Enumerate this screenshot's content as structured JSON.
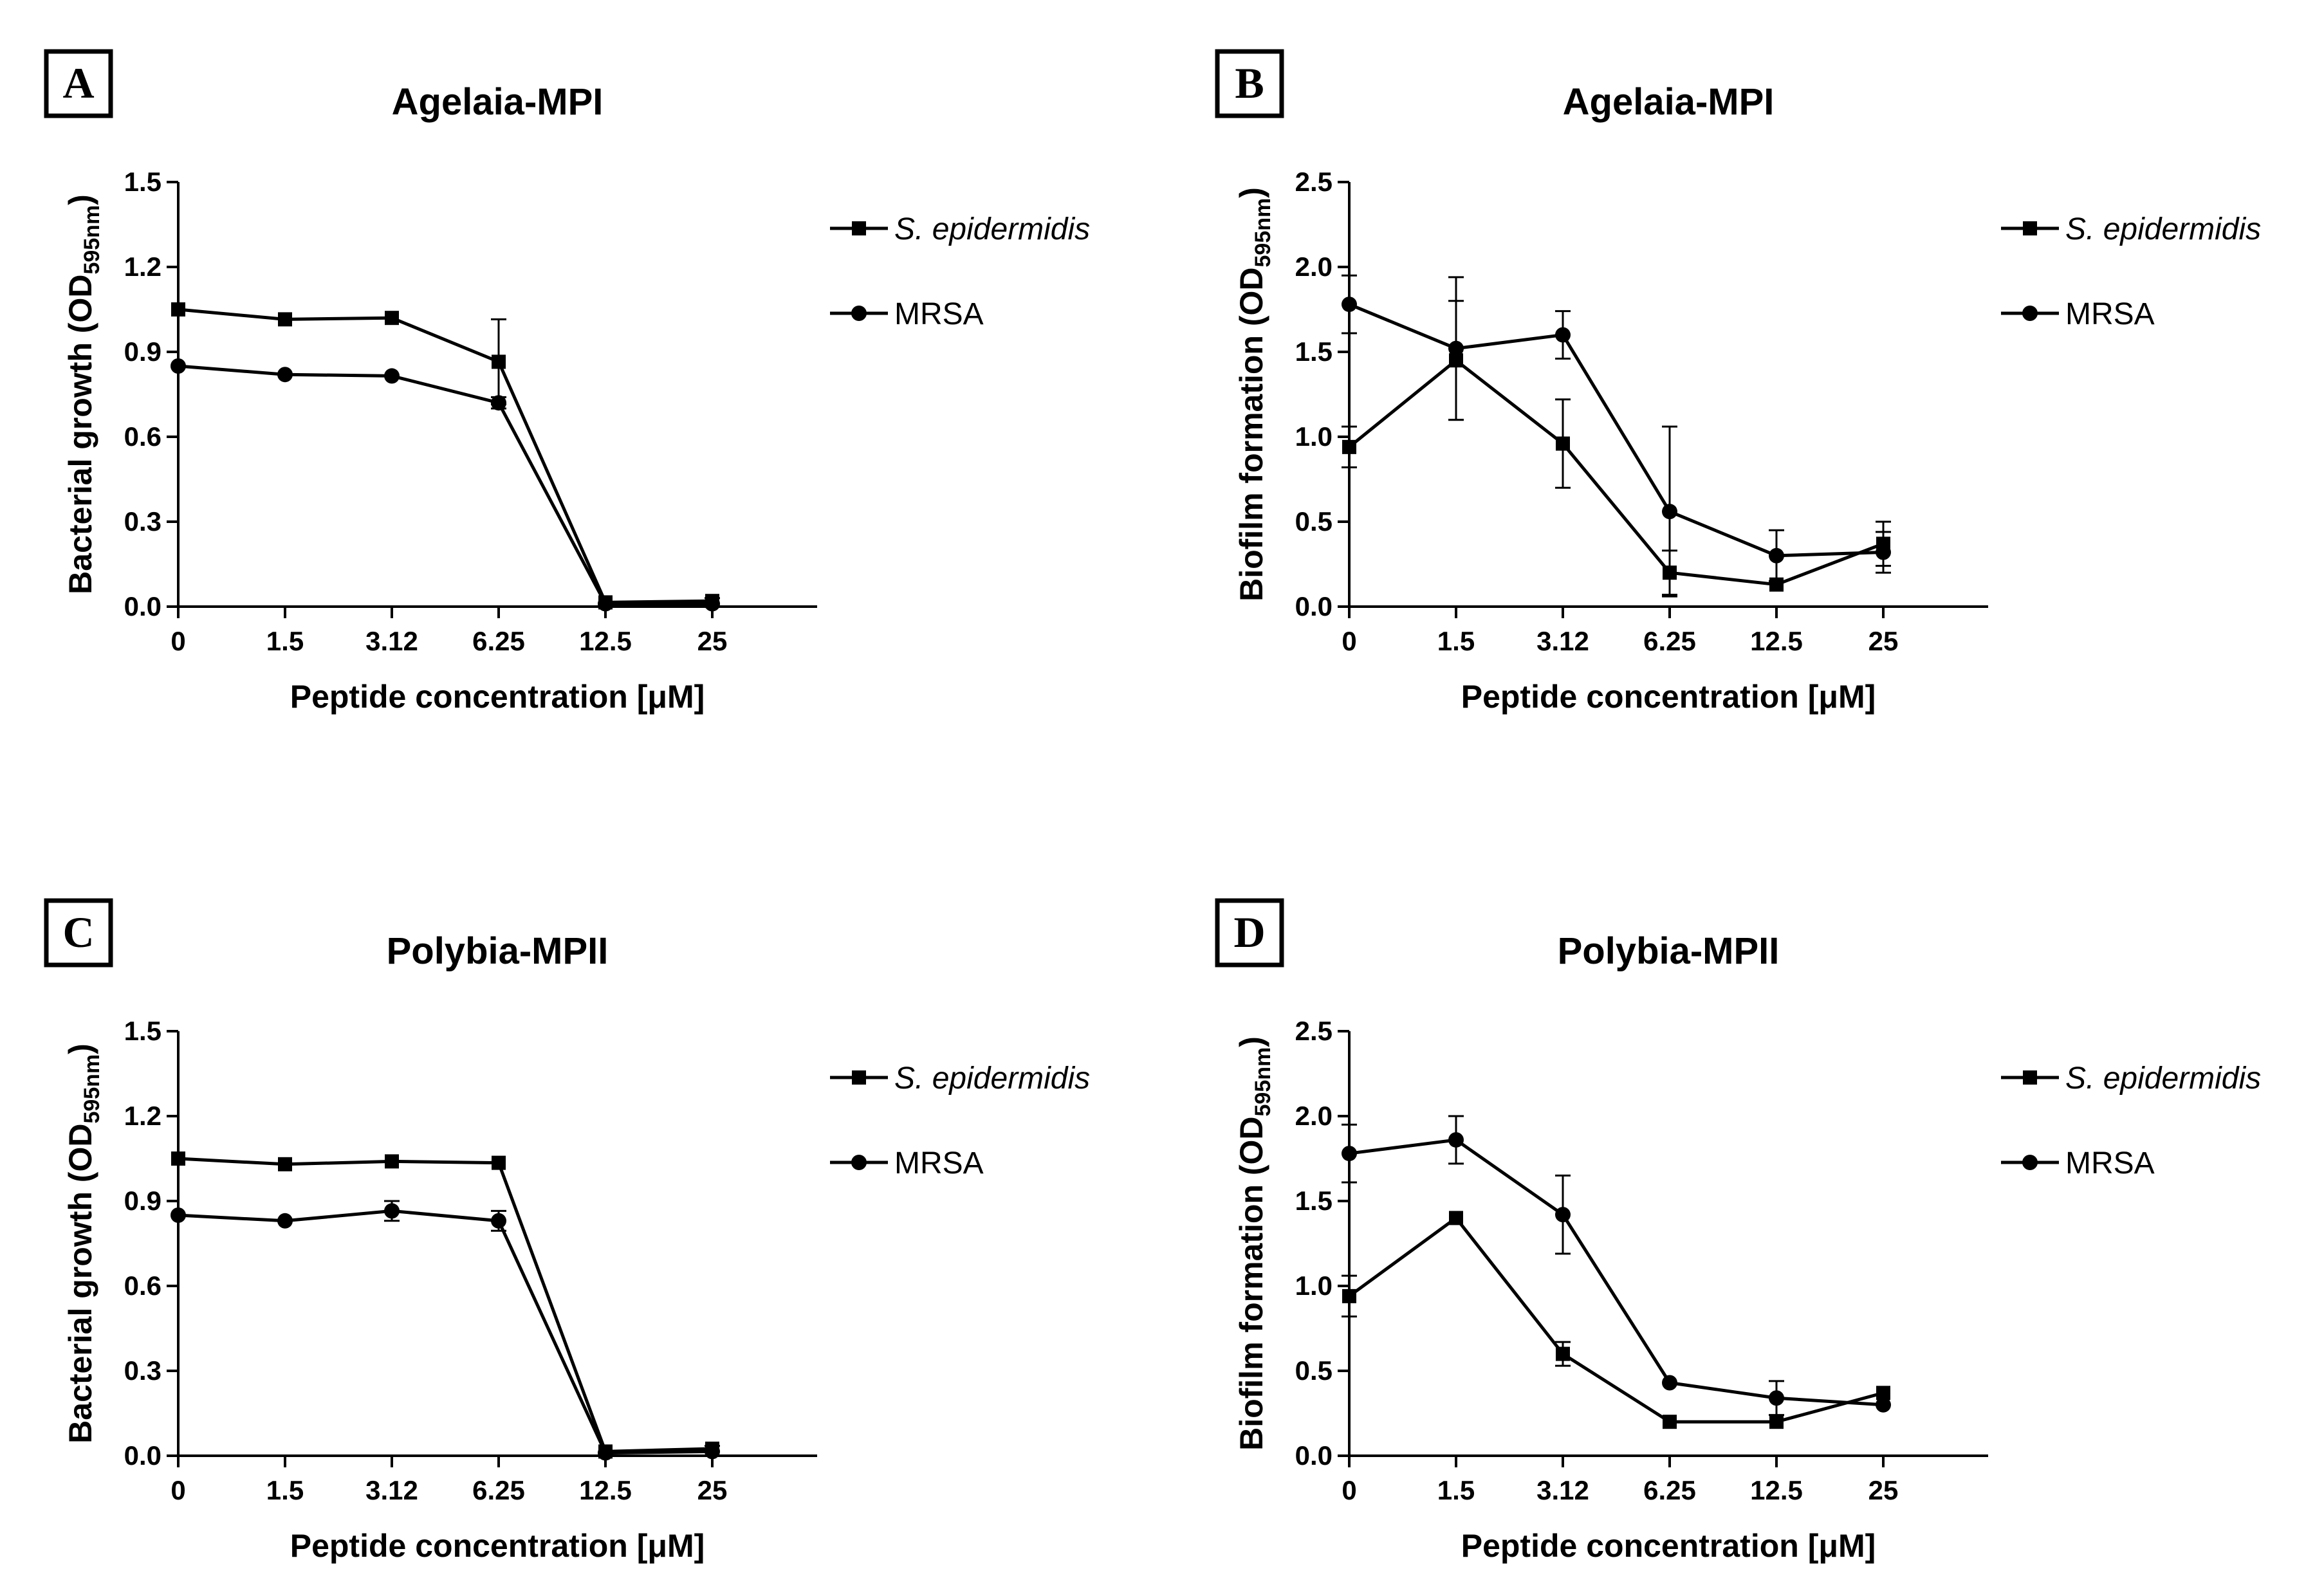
{
  "chart_data": [
    {
      "panel": "A",
      "type": "line",
      "title": "Agelaia-MPI",
      "xlabel": "Peptide concentration [μM]",
      "ylabel": "Bacterial growth (OD",
      "ylabel_sub": "595nm",
      "ylabel_close": ")",
      "categories": [
        "0",
        "1.5",
        "3.12",
        "6.25",
        "12.5",
        "25"
      ],
      "yticks": [
        "0.0",
        "0.3",
        "0.6",
        "0.9",
        "1.2",
        "1.5"
      ],
      "ylim": [
        0,
        1.5
      ],
      "series": [
        {
          "name": "S. epidermidis",
          "marker": "square",
          "values": [
            1.05,
            1.015,
            1.02,
            0.865,
            0.015,
            0.02
          ],
          "errors": [
            0,
            0,
            0,
            0.15,
            0,
            0.01
          ]
        },
        {
          "name": "MRSA",
          "marker": "circle",
          "values": [
            0.85,
            0.82,
            0.815,
            0.72,
            0.01,
            0.01
          ],
          "errors": [
            0,
            0,
            0,
            0.02,
            0,
            0
          ]
        }
      ]
    },
    {
      "panel": "B",
      "type": "line",
      "title": "Agelaia-MPI",
      "xlabel": "Peptide concentration [μM]",
      "ylabel": "Biofilm formation (OD",
      "ylabel_sub": "595nm",
      "ylabel_close": ")",
      "categories": [
        "0",
        "1.5",
        "3.12",
        "6.25",
        "12.5",
        "25"
      ],
      "yticks": [
        "0.0",
        "0.5",
        "1.0",
        "1.5",
        "2.0",
        "2.5"
      ],
      "ylim": [
        0,
        2.5
      ],
      "series": [
        {
          "name": "S. epidermidis",
          "marker": "square",
          "values": [
            0.94,
            1.45,
            0.96,
            0.2,
            0.13,
            0.37
          ],
          "errors": [
            0.12,
            0.35,
            0.26,
            0.13,
            0,
            0.13
          ]
        },
        {
          "name": "MRSA",
          "marker": "circle",
          "values": [
            1.78,
            1.52,
            1.6,
            0.56,
            0.3,
            0.32
          ],
          "errors": [
            0.17,
            0.42,
            0.14,
            0.5,
            0.15,
            0.12
          ]
        }
      ]
    },
    {
      "panel": "C",
      "type": "line",
      "title": "Polybia-MPII",
      "xlabel": "Peptide concentration [μM]",
      "ylabel": "Bacterial growth (OD",
      "ylabel_sub": "595nm",
      "ylabel_close": ")",
      "categories": [
        "0",
        "1.5",
        "3.12",
        "6.25",
        "12.5",
        "25"
      ],
      "yticks": [
        "0.0",
        "0.3",
        "0.6",
        "0.9",
        "1.2",
        "1.5"
      ],
      "ylim": [
        0,
        1.5
      ],
      "series": [
        {
          "name": "S. epidermidis",
          "marker": "square",
          "values": [
            1.05,
            1.03,
            1.04,
            1.035,
            0.015,
            0.025
          ],
          "errors": [
            0,
            0,
            0,
            0,
            0,
            0.01
          ]
        },
        {
          "name": "MRSA",
          "marker": "circle",
          "values": [
            0.85,
            0.83,
            0.865,
            0.83,
            0.01,
            0.015
          ],
          "errors": [
            0,
            0,
            0.035,
            0.035,
            0,
            0
          ]
        }
      ]
    },
    {
      "panel": "D",
      "type": "line",
      "title": "Polybia-MPII",
      "xlabel": "Peptide concentration [μM]",
      "ylabel": "Biofilm formation (OD",
      "ylabel_sub": "595nm",
      "ylabel_close": ")",
      "categories": [
        "0",
        "1.5",
        "3.12",
        "6.25",
        "12.5",
        "25"
      ],
      "yticks": [
        "0.0",
        "0.5",
        "1.0",
        "1.5",
        "2.0",
        "2.5"
      ],
      "ylim": [
        0,
        2.5
      ],
      "series": [
        {
          "name": "S. epidermidis",
          "marker": "square",
          "values": [
            0.94,
            1.4,
            0.6,
            0.2,
            0.2,
            0.37
          ],
          "errors": [
            0.12,
            0,
            0.07,
            0,
            0,
            0
          ]
        },
        {
          "name": "MRSA",
          "marker": "circle",
          "values": [
            1.78,
            1.86,
            1.42,
            0.43,
            0.34,
            0.3
          ],
          "errors": [
            0.17,
            0.14,
            0.23,
            0,
            0.1,
            0
          ]
        }
      ]
    }
  ],
  "legend": {
    "position": "right",
    "entries": [
      "S. epidermidis",
      "MRSA"
    ]
  },
  "colors": {
    "line": "#000000",
    "background": "#ffffff"
  }
}
